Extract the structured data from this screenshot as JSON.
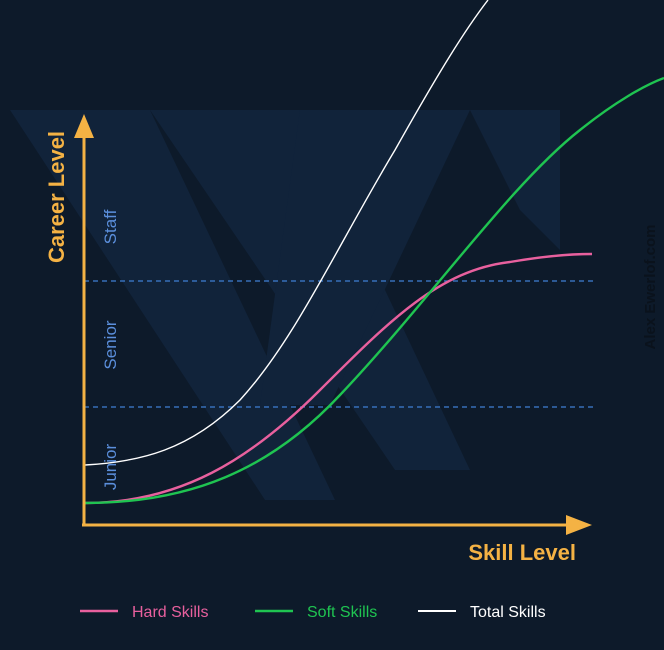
{
  "chart_data": {
    "type": "line",
    "xlabel": "Skill Level",
    "ylabel": "Career Level",
    "y_levels": [
      "Junior",
      "Senior",
      "Staff"
    ],
    "series": [
      {
        "name": "Hard Skills",
        "color": "#e8609e"
      },
      {
        "name": "Soft Skills",
        "color": "#1fc451"
      },
      {
        "name": "Total Skills",
        "color": "#ffffff"
      }
    ],
    "axis_color": "#f4b244",
    "level_color": "#5b8fdc",
    "divider_color": "#3f7fd4",
    "grid": false,
    "legend_position": "bottom"
  },
  "credit": "Alex Ewerlof.com"
}
